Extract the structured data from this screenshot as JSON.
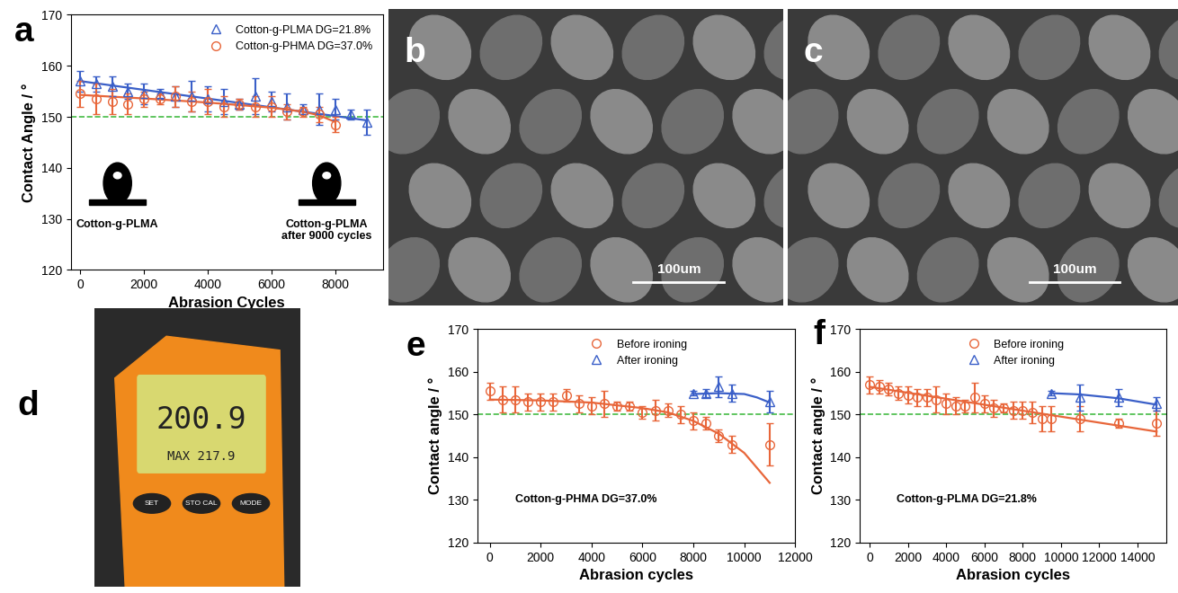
{
  "chart_data": [
    {
      "panel": "a",
      "type": "scatter",
      "x_label": "Abrasion Cycles",
      "y_label": "Contact Angle / °",
      "xlim": [
        -300,
        9500
      ],
      "xticks": [
        0,
        2000,
        4000,
        6000,
        8000
      ],
      "ylim": [
        120,
        170
      ],
      "yticks": [
        120,
        130,
        140,
        150,
        160,
        170
      ],
      "legend": "upper right",
      "threshold": 150,
      "annotations": [
        "Cotton-g-PLMA",
        "Cotton-g-PLMA\nafter 9000 cycles"
      ],
      "series": [
        {
          "name": "Cotton-g-PLMA DG=21.8%",
          "color": "#3a5fc8",
          "marker": "triangle",
          "x": [
            0,
            500,
            1000,
            1500,
            2000,
            2500,
            3000,
            3500,
            4000,
            4500,
            5000,
            5500,
            6000,
            6500,
            7000,
            7500,
            8000,
            8500,
            9000
          ],
          "values": [
            157,
            156.5,
            156,
            155,
            154.5,
            154.5,
            154,
            154,
            153.5,
            153,
            152.5,
            154,
            153,
            152,
            151.5,
            151.5,
            151.5,
            150.5,
            149
          ],
          "errors": [
            2,
            1.5,
            2,
            1.5,
            2,
            1,
            2,
            3,
            2.5,
            2.5,
            1,
            3.5,
            2,
            2.5,
            1,
            3,
            2,
            1,
            2.5
          ],
          "fit": {
            "x": [
              0,
              9000
            ],
            "values": [
              157,
              149.3
            ]
          }
        },
        {
          "name": "Cotton-g-PHMA DG=37.0%",
          "color": "#e8663a",
          "marker": "circle",
          "x": [
            0,
            500,
            1000,
            1500,
            2000,
            2500,
            3000,
            3500,
            4000,
            4500,
            5000,
            5500,
            6000,
            6500,
            7000,
            7500,
            8000
          ],
          "values": [
            154.5,
            153.5,
            153,
            152.5,
            153.5,
            153.5,
            154,
            153,
            153,
            152,
            152.5,
            152,
            152,
            151,
            151,
            150.5,
            148.5
          ],
          "errors": [
            2.5,
            3,
            2.5,
            2,
            1.5,
            1,
            2,
            2,
            2.5,
            2,
            1,
            2,
            2,
            1.5,
            1,
            1.5,
            1.5
          ],
          "fit": {
            "x": [
              0,
              2000,
              4000,
              6000,
              7000,
              7500,
              8000
            ],
            "values": [
              154.3,
              153.6,
              152.8,
              151.8,
              151,
              150.3,
              149
            ]
          }
        }
      ]
    },
    {
      "panel": "e",
      "type": "scatter",
      "x_label": "Abrasion cycles",
      "y_label": "Contact angle / °",
      "xlim": [
        -500,
        12000
      ],
      "xticks": [
        0,
        2000,
        4000,
        6000,
        8000,
        10000,
        12000
      ],
      "ylim": [
        120,
        170
      ],
      "yticks": [
        120,
        130,
        140,
        150,
        160,
        170
      ],
      "legend": "upper center",
      "threshold": 150,
      "annotations": [
        "Cotton-g-PHMA DG=37.0%"
      ],
      "series": [
        {
          "name": "Before ironing",
          "color": "#e8663a",
          "marker": "circle",
          "x": [
            0,
            500,
            1000,
            1500,
            2000,
            2500,
            3000,
            3500,
            4000,
            4500,
            5000,
            5500,
            6000,
            6500,
            7000,
            7500,
            8000,
            8500,
            9000,
            9500,
            11000
          ],
          "values": [
            155.5,
            153.5,
            153.5,
            153,
            153,
            153,
            154.5,
            152.5,
            152,
            152.5,
            152,
            152,
            150.5,
            151,
            151,
            150,
            148.5,
            148,
            145,
            143,
            143
          ],
          "errors": [
            2,
            3,
            3,
            2,
            2,
            2,
            1.5,
            2,
            2,
            3,
            1,
            1,
            1.5,
            2.5,
            1.5,
            2,
            2,
            1.5,
            1.5,
            2,
            5
          ],
          "fit": {
            "x": [
              0,
              2000,
              4000,
              6000,
              7000,
              8000,
              9000,
              10000,
              11000
            ],
            "values": [
              153.5,
              153.3,
              152.8,
              151.5,
              150.5,
              148.5,
              145.5,
              141,
              134
            ]
          }
        },
        {
          "name": "After ironing",
          "color": "#3a5fc8",
          "marker": "triangle",
          "x": [
            8000,
            8500,
            9000,
            9500,
            11000
          ],
          "values": [
            155,
            155,
            156.5,
            155,
            153
          ],
          "errors": [
            0.5,
            1,
            2.5,
            2,
            2.5
          ],
          "fit": {
            "x": [
              8000,
              9000,
              10000,
              10500,
              11000
            ],
            "values": [
              154.8,
              155,
              154.8,
              154,
              152.8
            ]
          }
        }
      ]
    },
    {
      "panel": "f",
      "type": "scatter",
      "x_label": "Abrasion cycles",
      "y_label": "Contact angle / °",
      "xlim": [
        -500,
        15500
      ],
      "xticks": [
        0,
        2000,
        4000,
        6000,
        8000,
        10000,
        12000,
        14000
      ],
      "ylim": [
        120,
        170
      ],
      "yticks": [
        120,
        130,
        140,
        150,
        160,
        170
      ],
      "legend": "upper center",
      "threshold": 150,
      "annotations": [
        "Cotton-g-PLMA DG=21.8%"
      ],
      "series": [
        {
          "name": "Before ironing",
          "color": "#e8663a",
          "marker": "circle",
          "x": [
            0,
            500,
            1000,
            1500,
            2000,
            2500,
            3000,
            3500,
            4000,
            4500,
            5000,
            5500,
            6000,
            6500,
            7000,
            7500,
            8000,
            8500,
            9000,
            9500,
            11000,
            13000,
            15000
          ],
          "values": [
            157,
            156.5,
            156,
            155,
            154.5,
            154,
            154,
            153.5,
            152.5,
            152,
            152,
            154,
            152.5,
            151.5,
            151.5,
            151,
            151,
            150.5,
            149,
            149,
            149,
            148,
            148
          ],
          "errors": [
            2,
            1.5,
            1.5,
            1.5,
            2,
            2,
            2,
            3,
            2.5,
            2,
            1.5,
            3.5,
            2,
            2,
            1,
            2,
            2,
            2.5,
            3,
            3,
            3,
            1,
            3
          ],
          "fit": {
            "x": [
              0,
              15000
            ],
            "values": [
              156.5,
              146
            ]
          }
        },
        {
          "name": "After ironing",
          "color": "#3a5fc8",
          "marker": "triangle",
          "x": [
            9500,
            11000,
            13000,
            15000
          ],
          "values": [
            155,
            154,
            154,
            152.5
          ],
          "errors": [
            0.5,
            3,
            2,
            1.5
          ],
          "fit": {
            "x": [
              9500,
              11000,
              13000,
              15000
            ],
            "values": [
              155,
              154.7,
              153.8,
              152.3
            ]
          }
        }
      ]
    }
  ],
  "images": [
    {
      "panel": "b",
      "scale_bar": "100um"
    },
    {
      "panel": "c",
      "scale_bar": "100um"
    },
    {
      "panel": "d",
      "display": "200.9",
      "max_reading": "MAX 217.9",
      "buttons": [
        "SET",
        "STO CAL",
        "MODE"
      ]
    }
  ]
}
